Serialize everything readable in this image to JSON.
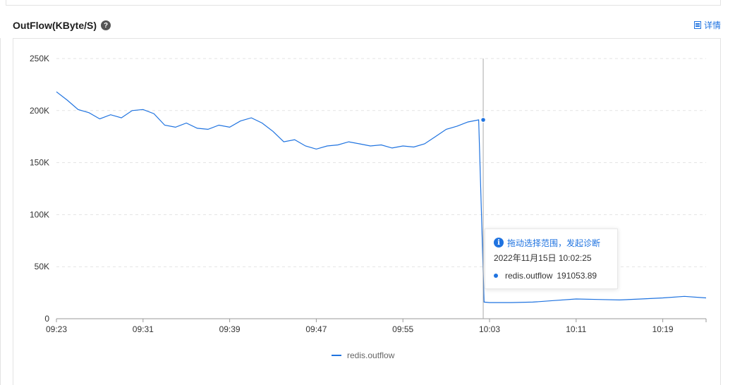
{
  "header": {
    "title": "OutFlow(KByte/S)",
    "help_icon": "question-circle-icon",
    "detail_label": "详情",
    "detail_icon": "detail-list-icon"
  },
  "tooltip": {
    "hint": "拖动选择范围，发起诊断",
    "hint_icon": "info-circle-icon",
    "time": "2022年11月15日 10:02:25",
    "series_name": "redis.outflow",
    "value": "191053.89"
  },
  "colors": {
    "series": "#1f73e0",
    "accent": "#1f73e0"
  },
  "chart_data": {
    "type": "line",
    "title": "OutFlow(KByte/S)",
    "xlabel": "",
    "ylabel": "",
    "ylim": [
      0,
      250000
    ],
    "y_ticks": [
      "0",
      "50K",
      "100K",
      "150K",
      "200K",
      "250K"
    ],
    "x_ticks": [
      "09:23",
      "09:31",
      "09:39",
      "09:47",
      "09:55",
      "10:03",
      "10:11",
      "10:19"
    ],
    "x_range": [
      "09:23",
      "10:23"
    ],
    "grid": "horizontal dashed",
    "legend": "bottom-center",
    "series": [
      {
        "name": "redis.outflow",
        "color": "#1f73e0",
        "points": [
          [
            "09:23",
            218000
          ],
          [
            "09:24",
            210000
          ],
          [
            "09:25",
            201000
          ],
          [
            "09:26",
            198000
          ],
          [
            "09:27",
            192000
          ],
          [
            "09:28",
            196000
          ],
          [
            "09:29",
            193000
          ],
          [
            "09:30",
            200000
          ],
          [
            "09:31",
            201000
          ],
          [
            "09:32",
            197000
          ],
          [
            "09:33",
            186000
          ],
          [
            "09:34",
            184000
          ],
          [
            "09:35",
            188000
          ],
          [
            "09:36",
            183000
          ],
          [
            "09:37",
            182000
          ],
          [
            "09:38",
            186000
          ],
          [
            "09:39",
            184000
          ],
          [
            "09:40",
            190000
          ],
          [
            "09:41",
            193000
          ],
          [
            "09:42",
            188000
          ],
          [
            "09:43",
            180000
          ],
          [
            "09:44",
            170000
          ],
          [
            "09:45",
            172000
          ],
          [
            "09:46",
            166000
          ],
          [
            "09:47",
            163000
          ],
          [
            "09:48",
            166000
          ],
          [
            "09:49",
            167000
          ],
          [
            "09:50",
            170000
          ],
          [
            "09:51",
            168000
          ],
          [
            "09:52",
            166000
          ],
          [
            "09:53",
            167000
          ],
          [
            "09:54",
            164000
          ],
          [
            "09:55",
            166000
          ],
          [
            "09:56",
            165000
          ],
          [
            "09:57",
            168000
          ],
          [
            "09:58",
            175000
          ],
          [
            "09:59",
            182000
          ],
          [
            "10:00",
            185000
          ],
          [
            "10:01",
            189000
          ],
          [
            "10:02",
            191054
          ],
          [
            "10:02:30",
            16000
          ],
          [
            "10:03",
            15500
          ],
          [
            "10:05",
            15500
          ],
          [
            "10:07",
            16000
          ],
          [
            "10:09",
            17500
          ],
          [
            "10:11",
            19000
          ],
          [
            "10:13",
            18500
          ],
          [
            "10:15",
            18000
          ],
          [
            "10:17",
            19000
          ],
          [
            "10:19",
            20000
          ],
          [
            "10:21",
            21500
          ],
          [
            "10:23",
            20000
          ]
        ]
      }
    ],
    "highlight": {
      "x": "10:02:25",
      "y": 191053.89
    }
  }
}
